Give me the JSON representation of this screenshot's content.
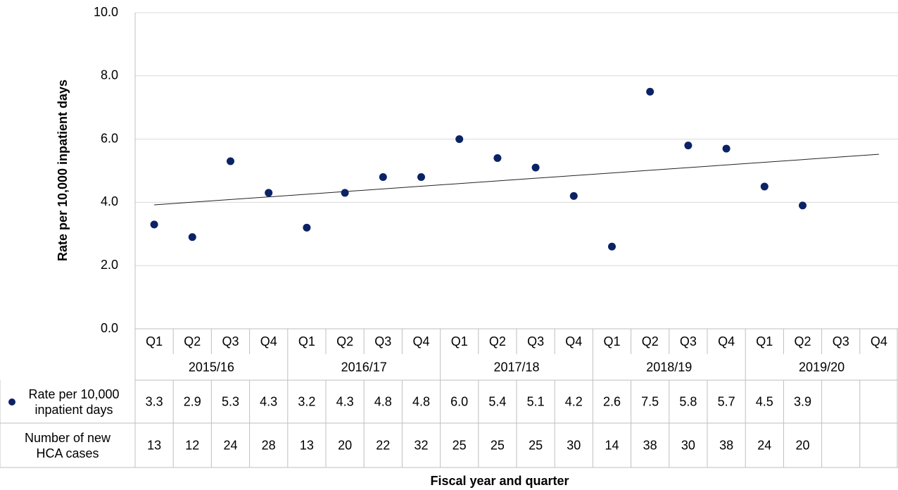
{
  "chart_data": {
    "type": "scatter",
    "ylabel": "Rate per 10,000 inpatient days",
    "xlabel": "Fiscal year and quarter",
    "categories": [
      "Q1",
      "Q2",
      "Q3",
      "Q4",
      "Q1",
      "Q2",
      "Q3",
      "Q4",
      "Q1",
      "Q2",
      "Q3",
      "Q4",
      "Q1",
      "Q2",
      "Q3",
      "Q4",
      "Q1",
      "Q2",
      "Q3",
      "Q4"
    ],
    "groups": [
      {
        "label": "2015/16",
        "span": 4
      },
      {
        "label": "2016/17",
        "span": 4
      },
      {
        "label": "2017/18",
        "span": 4
      },
      {
        "label": "2018/19",
        "span": 4
      },
      {
        "label": "2019/20",
        "span": 4
      }
    ],
    "series": [
      {
        "name": "Rate per 10,000 inpatient days",
        "color": "#0b2265",
        "values": [
          3.3,
          2.9,
          5.3,
          4.3,
          3.2,
          4.3,
          4.8,
          4.8,
          6.0,
          5.4,
          5.1,
          4.2,
          2.6,
          7.5,
          5.8,
          5.7,
          4.5,
          3.9,
          null,
          null
        ],
        "value_labels": [
          "3.3",
          "2.9",
          "5.3",
          "4.3",
          "3.2",
          "4.3",
          "4.8",
          "4.8",
          "6.0",
          "5.4",
          "5.1",
          "4.2",
          "2.6",
          "7.5",
          "5.8",
          "5.7",
          "4.5",
          "3.9",
          null,
          null
        ]
      }
    ],
    "table_rows": [
      {
        "name": "Number of new HCA cases",
        "values": [
          13,
          12,
          24,
          28,
          13,
          20,
          22,
          32,
          25,
          25,
          25,
          30,
          14,
          38,
          30,
          38,
          24,
          20,
          null,
          null
        ]
      }
    ],
    "trendline": {
      "start": 3.92,
      "end": 5.52,
      "color": "#222222"
    },
    "ylim": [
      0,
      10
    ],
    "yticks": [
      {
        "value": 0,
        "label": "0.0"
      },
      {
        "value": 2,
        "label": "2.0"
      },
      {
        "value": 4,
        "label": "4.0"
      },
      {
        "value": 6,
        "label": "6.0"
      },
      {
        "value": 8,
        "label": "8.0"
      },
      {
        "value": 10,
        "label": "10.0"
      }
    ],
    "grid": true
  }
}
